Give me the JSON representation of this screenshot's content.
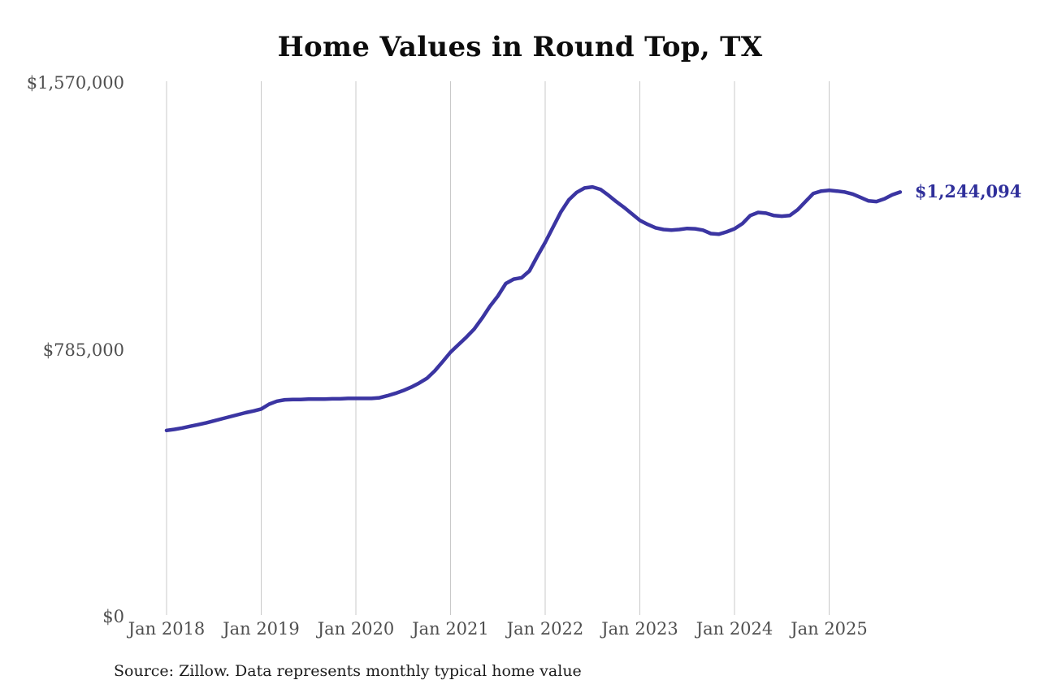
{
  "title": "Home Values in Round Top, TX",
  "source_note": "Source: Zillow. Data represents monthly typical home value",
  "end_label": "$1,244,094",
  "colors": {
    "background": "#ffffff",
    "line": "#3b35a2",
    "end_label_text": "#30309b",
    "gridline": "#c9c9c9",
    "axis_text": "#4f4f4f",
    "title_text": "#0d0d0d",
    "source_text": "#1c1c1c"
  },
  "chart_data": {
    "type": "line",
    "title": "Home Values in Round Top, TX",
    "xlabel": "",
    "ylabel": "",
    "ylim": [
      0,
      1570000
    ],
    "grid": "vertical-only",
    "legend": "none",
    "y_ticks": [
      {
        "label": "$1,570,000",
        "value": 1570000
      },
      {
        "label": "$785,000",
        "value": 785000
      },
      {
        "label": "$0",
        "value": 0
      }
    ],
    "x_ticks": [
      {
        "label": "Jan 2018",
        "month_index": 0
      },
      {
        "label": "Jan 2019",
        "month_index": 12
      },
      {
        "label": "Jan 2020",
        "month_index": 24
      },
      {
        "label": "Jan 2021",
        "month_index": 36
      },
      {
        "label": "Jan 2022",
        "month_index": 48
      },
      {
        "label": "Jan 2023",
        "month_index": 60
      },
      {
        "label": "Jan 2024",
        "month_index": 72
      },
      {
        "label": "Jan 2025",
        "month_index": 84
      }
    ],
    "series": [
      {
        "name": "Monthly typical home value",
        "unit": "USD",
        "x_start": "2018-01",
        "x_step_months": 1,
        "values": [
          543000,
          546000,
          550000,
          555000,
          560000,
          565000,
          571000,
          577000,
          583000,
          589000,
          595000,
          600000,
          606000,
          620000,
          629000,
          633000,
          634000,
          634000,
          635000,
          635000,
          635000,
          636000,
          636000,
          637000,
          637000,
          637000,
          637000,
          639000,
          645000,
          652000,
          660000,
          670000,
          682000,
          696000,
          718000,
          745000,
          773000,
          795000,
          817000,
          841000,
          873000,
          908000,
          938000,
          975000,
          988000,
          992000,
          1012000,
          1055000,
          1096000,
          1141000,
          1186000,
          1221000,
          1243000,
          1256000,
          1259000,
          1252000,
          1235000,
          1216000,
          1199000,
          1180000,
          1161000,
          1149000,
          1139000,
          1134000,
          1132000,
          1134000,
          1137000,
          1136000,
          1132000,
          1122000,
          1120000,
          1127000,
          1136000,
          1151000,
          1175000,
          1184000,
          1182000,
          1175000,
          1173000,
          1175000,
          1192000,
          1216000,
          1240000,
          1247000,
          1249000,
          1247000,
          1244000,
          1238000,
          1228000,
          1218000,
          1216000,
          1224000,
          1236000,
          1244094
        ]
      }
    ],
    "final_value": 1244094,
    "final_value_label": "$1,244,094"
  }
}
